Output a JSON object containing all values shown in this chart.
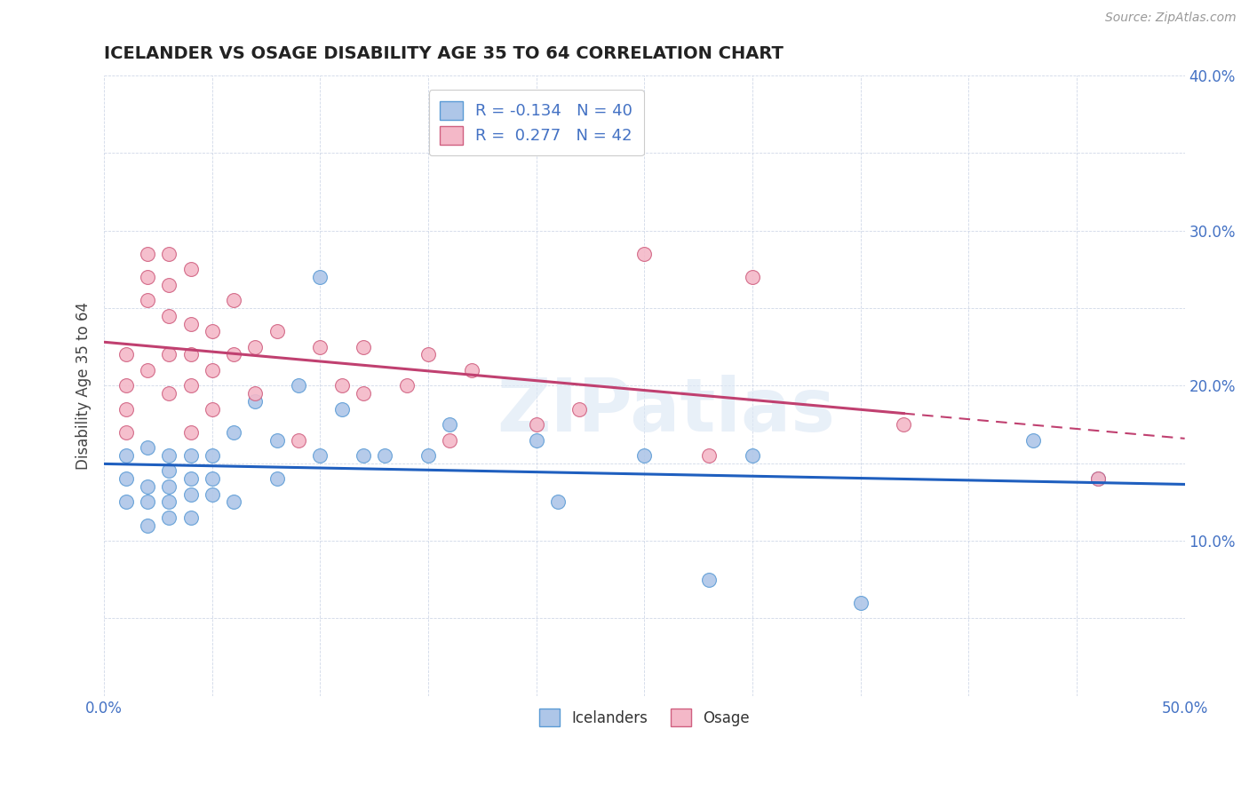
{
  "title": "ICELANDER VS OSAGE DISABILITY AGE 35 TO 64 CORRELATION CHART",
  "source": "Source: ZipAtlas.com",
  "ylabel": "Disability Age 35 to 64",
  "xlim": [
    0.0,
    0.5
  ],
  "ylim": [
    0.0,
    0.4
  ],
  "xticks": [
    0.0,
    0.05,
    0.1,
    0.15,
    0.2,
    0.25,
    0.3,
    0.35,
    0.4,
    0.45,
    0.5
  ],
  "yticks": [
    0.0,
    0.05,
    0.1,
    0.15,
    0.2,
    0.25,
    0.3,
    0.35,
    0.4
  ],
  "icelander_color": "#aec6e8",
  "icelander_edge": "#5b9bd5",
  "osage_color": "#f4b8c8",
  "osage_edge": "#d06080",
  "icelander_line_color": "#1f5fbf",
  "osage_line_color": "#c04070",
  "icelander_R": -0.134,
  "icelander_N": 40,
  "osage_R": 0.277,
  "osage_N": 42,
  "background_color": "#ffffff",
  "grid_color": "#d0d8e8",
  "watermark": "ZIPatlas",
  "icelander_x": [
    0.01,
    0.01,
    0.01,
    0.02,
    0.02,
    0.02,
    0.02,
    0.03,
    0.03,
    0.03,
    0.03,
    0.03,
    0.04,
    0.04,
    0.04,
    0.04,
    0.05,
    0.05,
    0.05,
    0.06,
    0.06,
    0.07,
    0.08,
    0.08,
    0.09,
    0.1,
    0.1,
    0.11,
    0.12,
    0.13,
    0.15,
    0.16,
    0.2,
    0.21,
    0.25,
    0.28,
    0.3,
    0.35,
    0.43,
    0.46
  ],
  "icelander_y": [
    0.155,
    0.14,
    0.125,
    0.16,
    0.135,
    0.125,
    0.11,
    0.155,
    0.145,
    0.135,
    0.125,
    0.115,
    0.155,
    0.14,
    0.13,
    0.115,
    0.155,
    0.14,
    0.13,
    0.17,
    0.125,
    0.19,
    0.165,
    0.14,
    0.2,
    0.155,
    0.27,
    0.185,
    0.155,
    0.155,
    0.155,
    0.175,
    0.165,
    0.125,
    0.155,
    0.075,
    0.155,
    0.06,
    0.165,
    0.14
  ],
  "osage_x": [
    0.01,
    0.01,
    0.01,
    0.01,
    0.02,
    0.02,
    0.02,
    0.02,
    0.03,
    0.03,
    0.03,
    0.03,
    0.03,
    0.04,
    0.04,
    0.04,
    0.04,
    0.04,
    0.05,
    0.05,
    0.05,
    0.06,
    0.06,
    0.07,
    0.07,
    0.08,
    0.09,
    0.1,
    0.11,
    0.12,
    0.12,
    0.14,
    0.15,
    0.16,
    0.17,
    0.2,
    0.22,
    0.25,
    0.28,
    0.3,
    0.37,
    0.46
  ],
  "osage_y": [
    0.22,
    0.2,
    0.185,
    0.17,
    0.285,
    0.27,
    0.255,
    0.21,
    0.285,
    0.265,
    0.245,
    0.22,
    0.195,
    0.275,
    0.24,
    0.22,
    0.2,
    0.17,
    0.235,
    0.21,
    0.185,
    0.255,
    0.22,
    0.225,
    0.195,
    0.235,
    0.165,
    0.225,
    0.2,
    0.225,
    0.195,
    0.2,
    0.22,
    0.165,
    0.21,
    0.175,
    0.185,
    0.285,
    0.155,
    0.27,
    0.175,
    0.14
  ]
}
